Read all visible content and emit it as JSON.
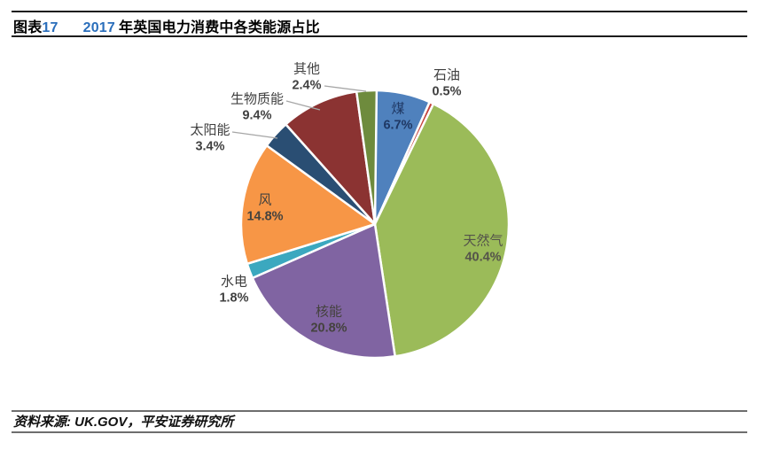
{
  "header": {
    "tag_prefix": "图表",
    "tag_number": "17",
    "title_year": "2017",
    "title_rest": "年英国电力消费中各类能源占比"
  },
  "footer": {
    "source_label": "资料来源: UK.GOV，平安证券研究所"
  },
  "theme": {
    "accent_blue": "#2a6ebb",
    "header_rule_color": "#1c1c1c",
    "footer_rule_color": "#6e6e6e",
    "label_gray": "#404040",
    "coal_label_navy": "#1f3864",
    "leader_line_gray": "#a6a6a6",
    "slice_border": "#ffffff"
  },
  "chart_data": {
    "type": "pie",
    "title": "2017 年英国电力消费中各类能源占比",
    "unit": "%",
    "start_angle_deg": 0,
    "direction": "clockwise",
    "legend": "none",
    "slices": [
      {
        "label": "煤",
        "value": 6.7,
        "pct_label": "6.7%",
        "color": "#4f81bd",
        "label_position": "inside"
      },
      {
        "label": "石油",
        "value": 0.5,
        "pct_label": "0.5%",
        "color": "#c4423c",
        "label_position": "outside"
      },
      {
        "label": "天然气",
        "value": 40.4,
        "pct_label": "40.4%",
        "color": "#9bbb59",
        "label_position": "inside"
      },
      {
        "label": "核能",
        "value": 20.8,
        "pct_label": "20.8%",
        "color": "#8064a2",
        "label_position": "inside"
      },
      {
        "label": "水电",
        "value": 1.8,
        "pct_label": "1.8%",
        "color": "#3ba8bf",
        "label_position": "outside"
      },
      {
        "label": "风",
        "value": 14.8,
        "pct_label": "14.8%",
        "color": "#f79646",
        "label_position": "inside"
      },
      {
        "label": "太阳能",
        "value": 3.4,
        "pct_label": "3.4%",
        "color": "#2a4e73",
        "label_position": "outside"
      },
      {
        "label": "生物质能",
        "value": 9.4,
        "pct_label": "9.4%",
        "color": "#8b3332",
        "label_position": "outside"
      },
      {
        "label": "其他",
        "value": 2.4,
        "pct_label": "2.4%",
        "color": "#6e8b3d",
        "label_position": "outside"
      }
    ]
  }
}
